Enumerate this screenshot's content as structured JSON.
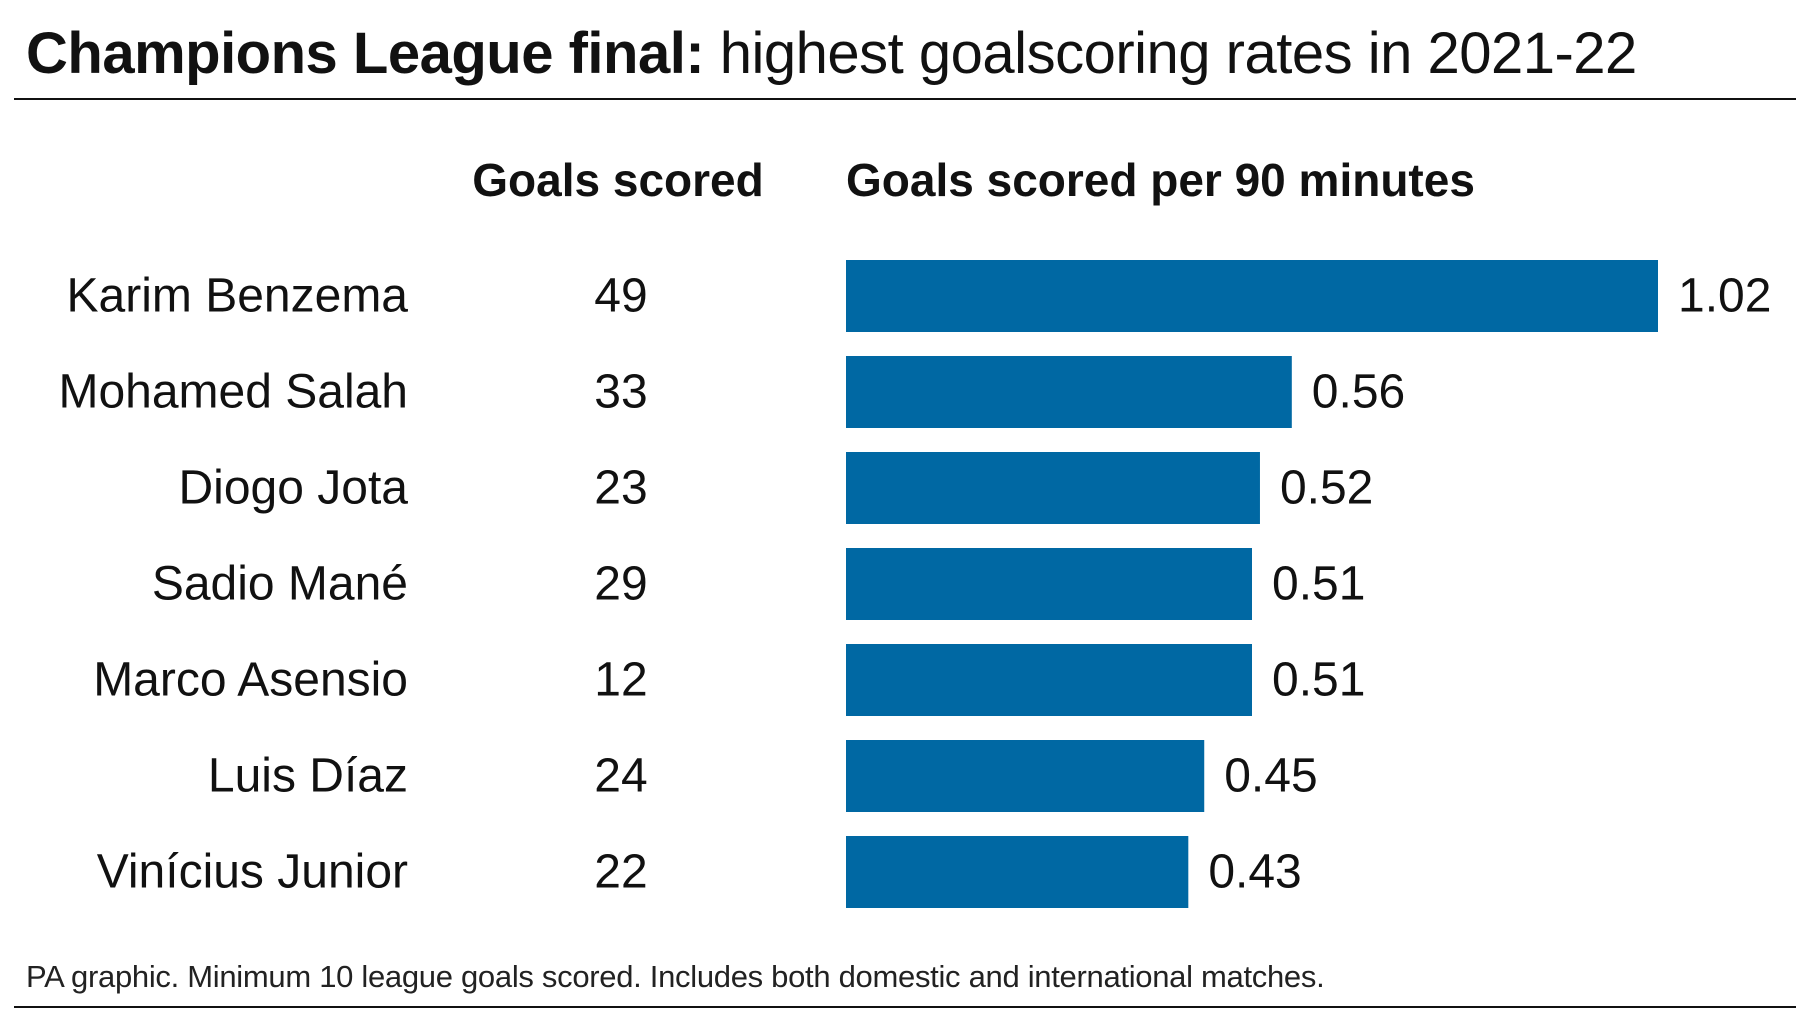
{
  "title": {
    "bold_part": "Champions League final:",
    "light_part": "highest goalscoring rates in 2021-22"
  },
  "columns": {
    "goals_header": "Goals scored",
    "rate_header": "Goals scored per 90 minutes"
  },
  "footnote": "PA graphic.  Minimum 10 league goals scored.  Includes both domestic and international matches.",
  "colors": {
    "bar": "#0068a3",
    "text": "#111111",
    "rule": "#111111"
  },
  "chart_data": {
    "type": "bar",
    "orientation": "horizontal",
    "categories": [
      "Karim Benzema",
      "Mohamed Salah",
      "Diogo Jota",
      "Sadio Mané",
      "Marco Asensio",
      "Luis Díaz",
      "Vinícius Junior"
    ],
    "goals_scored": [
      49,
      33,
      23,
      29,
      12,
      24,
      22
    ],
    "series": [
      {
        "values": [
          1.02,
          0.56,
          0.52,
          0.51,
          0.51,
          0.45,
          0.43
        ],
        "labels": [
          "1.02",
          "0.56",
          "0.52",
          "0.51",
          "0.51",
          "0.45",
          "0.43"
        ]
      }
    ],
    "xlim": [
      0,
      1.02
    ],
    "grid": false,
    "legend": "none"
  }
}
